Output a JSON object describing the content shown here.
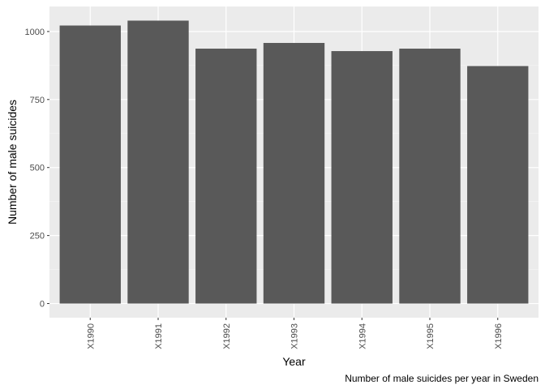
{
  "chart_data": {
    "type": "bar",
    "categories": [
      "X1990",
      "X1991",
      "X1992",
      "X1993",
      "X1994",
      "X1995",
      "X1996"
    ],
    "values": [
      1022,
      1040,
      937,
      958,
      928,
      937,
      873
    ],
    "xlabel": "Year",
    "ylabel": "Number of male suicides",
    "caption": "Number of male suicides per year in Sweden",
    "ylim": [
      -52,
      1092
    ],
    "yticks": [
      0,
      250,
      500,
      750,
      1000
    ],
    "ytick_labels": [
      "0",
      "250",
      "500",
      "750",
      "1000"
    ],
    "grid": true,
    "legend": "none",
    "colors": {
      "bar": "#595959",
      "panel": "#ebebeb",
      "grid_major": "#ffffff",
      "grid_minor": "#f5f5f5",
      "tick": "#333333"
    }
  }
}
